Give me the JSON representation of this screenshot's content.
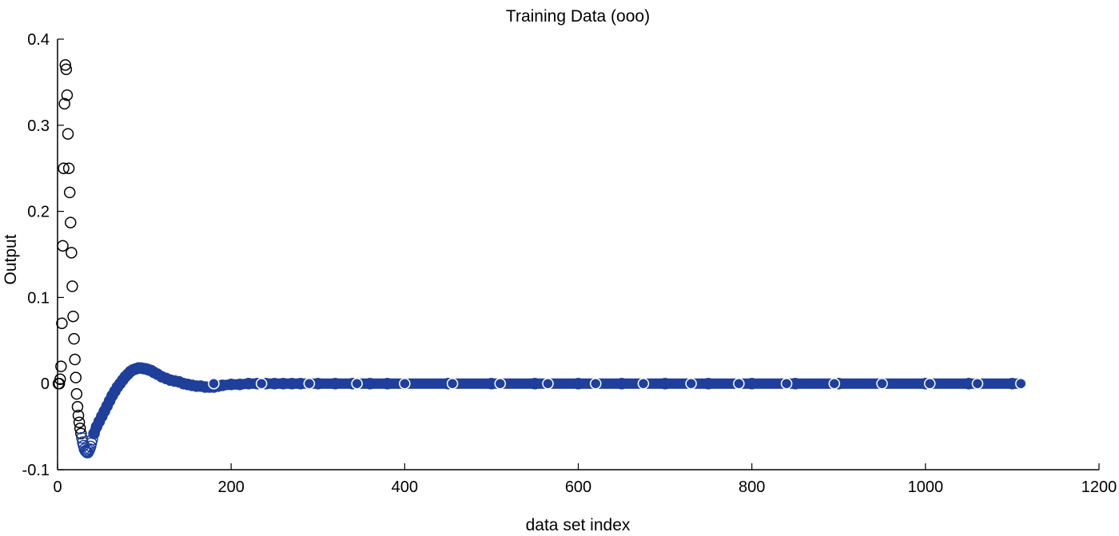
{
  "chart_data": {
    "type": "scatter",
    "title": "Training Data (ooo)",
    "xlabel": "data set index",
    "ylabel": "Output",
    "xlim": [
      0,
      1200
    ],
    "ylim": [
      -0.1,
      0.4
    ],
    "xticks": [
      0,
      200,
      400,
      600,
      800,
      1000,
      1200
    ],
    "xtick_labels": [
      "0",
      "200",
      "400",
      "600",
      "800",
      "1000",
      "1200"
    ],
    "yticks": [
      -0.1,
      0,
      0.1,
      0.2,
      0.3,
      0.4
    ],
    "ytick_labels": [
      "-0.1",
      "0",
      "0.1",
      "0.2",
      "0.3",
      "0.4"
    ],
    "grid": false,
    "marker": "open-circle",
    "colors": {
      "axes": "#000000",
      "early_markers": "#000000",
      "dense_markers": "#1f3f9a",
      "background": "#ffffff"
    },
    "series": [
      {
        "x": [
          1,
          2,
          3,
          4,
          5,
          6,
          7,
          8,
          9,
          10,
          11,
          12,
          13,
          14,
          15,
          16,
          17,
          18,
          19,
          20,
          21,
          22,
          23,
          24,
          25,
          26,
          27,
          28,
          29,
          30,
          31,
          32,
          33,
          34,
          35,
          36,
          37,
          38,
          39,
          40
        ],
        "y": [
          0.0,
          0.0,
          0.005,
          0.02,
          0.07,
          0.16,
          0.25,
          0.325,
          0.37,
          0.365,
          0.335,
          0.29,
          0.25,
          0.222,
          0.187,
          0.152,
          0.113,
          0.078,
          0.052,
          0.028,
          0.007,
          -0.012,
          -0.027,
          -0.037,
          -0.045,
          -0.052,
          -0.058,
          -0.063,
          -0.068,
          -0.072,
          -0.076,
          -0.078,
          -0.079,
          -0.08,
          -0.08,
          -0.078,
          -0.076,
          -0.073,
          -0.069,
          -0.065
        ]
      },
      {
        "x": [
          42,
          45,
          48,
          51,
          54,
          57,
          60,
          63,
          66,
          69,
          72,
          75,
          78,
          81,
          84,
          87,
          90,
          93,
          96,
          99,
          102,
          105,
          108,
          111,
          115,
          120,
          125,
          130,
          135,
          140,
          145,
          150,
          155,
          160,
          165,
          170,
          175,
          180,
          185,
          190,
          200,
          210,
          220,
          230,
          240,
          250,
          260,
          270,
          280,
          290,
          300,
          320,
          340,
          360,
          380,
          400,
          450,
          500,
          550,
          600,
          650,
          700,
          750,
          800,
          850,
          900,
          950,
          1000,
          1050,
          1100,
          1110
        ],
        "y": [
          -0.058,
          -0.05,
          -0.044,
          -0.038,
          -0.032,
          -0.026,
          -0.02,
          -0.014,
          -0.009,
          -0.004,
          0.0,
          0.004,
          0.008,
          0.011,
          0.014,
          0.016,
          0.017,
          0.018,
          0.018,
          0.0175,
          0.017,
          0.016,
          0.015,
          0.013,
          0.011,
          0.008,
          0.006,
          0.004,
          0.003,
          0.002,
          0.0,
          -0.001,
          -0.002,
          -0.003,
          -0.003,
          -0.004,
          -0.004,
          -0.004,
          -0.003,
          -0.002,
          -0.001,
          -0.001,
          0.0,
          0.0,
          0.0,
          0.0,
          0.0,
          0.0,
          0.0,
          0.0,
          0.0,
          0.0,
          0.0,
          0.0,
          0.0,
          0.0,
          0.0,
          0.0,
          0.0,
          0.0,
          0.0,
          0.0,
          0.0,
          0.0,
          0.0,
          0.0,
          0.0,
          0.0,
          0.0,
          0.0,
          0.0
        ]
      }
    ],
    "highlight_x": [
      180,
      235,
      290,
      345,
      400,
      455,
      510,
      565,
      620,
      675,
      730,
      785,
      840,
      895,
      950,
      1005,
      1060,
      1110
    ]
  }
}
